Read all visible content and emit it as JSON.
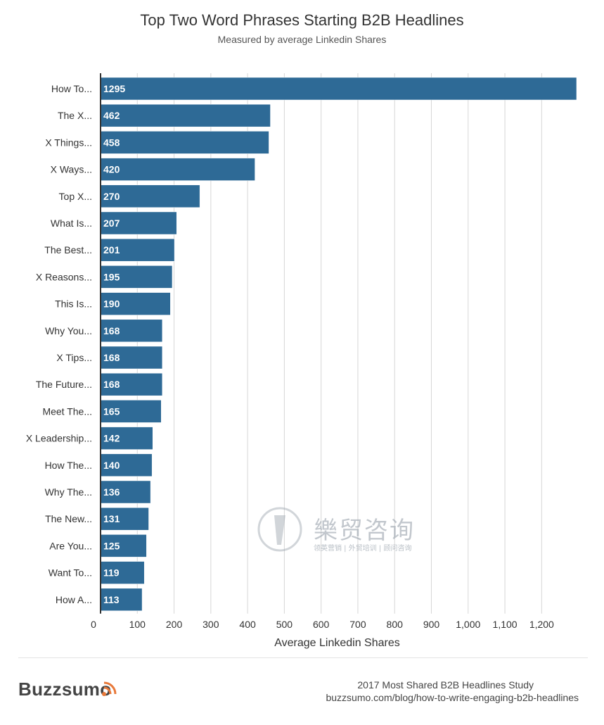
{
  "header": {
    "title": "Top Two Word Phrases Starting B2B Headlines",
    "subtitle": "Measured by average Linkedin Shares"
  },
  "chart_data": {
    "type": "bar",
    "orientation": "horizontal",
    "title": "Top Two Word Phrases Starting B2B Headlines",
    "subtitle": "Measured by average Linkedin Shares",
    "xlabel": "Average Linkedin Shares",
    "ylabel": "",
    "xlim": [
      0,
      1295
    ],
    "x_ticks": [
      0,
      100,
      200,
      300,
      400,
      500,
      600,
      700,
      800,
      900,
      1000,
      1100,
      1200
    ],
    "x_tick_labels": [
      "0",
      "100",
      "200",
      "300",
      "400",
      "500",
      "600",
      "700",
      "800",
      "900",
      "1,000",
      "1,100",
      "1,200"
    ],
    "grid": true,
    "bar_color": "#2e6a96",
    "categories": [
      "How To...",
      "The X...",
      "X Things...",
      "X Ways...",
      "Top X...",
      "What Is...",
      "The Best...",
      "X Reasons...",
      "This Is...",
      "Why You...",
      "X Tips...",
      "The Future...",
      "Meet The...",
      "X Leadership...",
      "How The...",
      "Why The...",
      "The New...",
      "Are You...",
      "Want To...",
      "How A..."
    ],
    "values": [
      1295,
      462,
      458,
      420,
      270,
      207,
      201,
      195,
      190,
      168,
      168,
      168,
      165,
      142,
      140,
      136,
      131,
      125,
      119,
      113
    ]
  },
  "watermark": {
    "title": "樂贸咨询",
    "subtitle": "领英营销 | 外贸培训 | 顾问咨询"
  },
  "footer": {
    "brand": "Buzzsumo",
    "study_title": "2017 Most Shared B2B Headlines Study",
    "study_url": "buzzsumo.com/blog/how-to-write-engaging-b2b-headlines"
  }
}
